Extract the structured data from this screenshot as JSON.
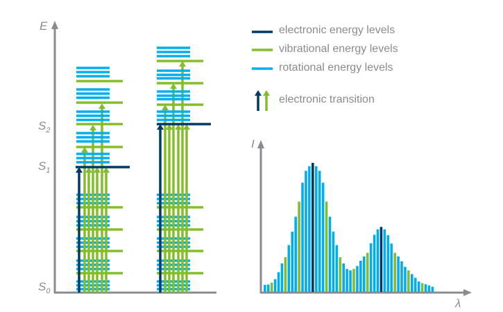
{
  "colors": {
    "electronic": "#003a63",
    "vibrational": "#84bd2a",
    "rotational": "#00aeef",
    "axis": "#8a8b90"
  },
  "energy_diagram": {
    "y_axis_label": "E",
    "levels": [
      {
        "symbol": "S",
        "sub": "2"
      },
      {
        "symbol": "S",
        "sub": "1"
      },
      {
        "symbol": "S",
        "sub": "0"
      }
    ]
  },
  "legend": [
    {
      "text": "electronic energy levels",
      "type": "electronic"
    },
    {
      "text": "vibrational energy levels",
      "type": "vibrational"
    },
    {
      "text": "rotational energy levels",
      "type": "rotational"
    },
    {
      "text": "electronic transition",
      "type": "transition"
    }
  ],
  "chart_data": {
    "type": "bar",
    "xlabel": "λ",
    "ylabel": "I",
    "intensity": [
      5.4,
      5.7,
      7.2,
      9.9,
      15.3,
      22.1,
      26.9,
      36.3,
      46.7,
      58.3,
      70,
      84.7,
      93.9,
      97.5,
      100,
      97.5,
      93.9,
      84.7,
      70,
      58.3,
      46.7,
      36.3,
      26.9,
      22.1,
      17.8,
      16.7,
      17.8,
      20.1,
      24.2,
      27.5,
      30.3,
      37.7,
      44.3,
      48.5,
      50.4,
      48.5,
      44,
      37.5,
      30.3,
      27.5,
      23.7,
      19.4,
      16.7,
      13.8,
      11,
      8.1,
      6.8,
      5.9,
      5,
      4
    ],
    "line_type": [
      "rotational",
      "rotational",
      "vibrational",
      "rotational",
      "rotational",
      "rotational",
      "vibrational",
      "rotational",
      "rotational",
      "rotational",
      "vibrational",
      "rotational",
      "rotational",
      "rotational",
      "electronic",
      "rotational",
      "rotational",
      "rotational",
      "vibrational",
      "rotational",
      "rotational",
      "rotational",
      "vibrational",
      "rotational",
      "rotational",
      "rotational",
      "vibrational",
      "rotational",
      "rotational",
      "rotational",
      "vibrational",
      "rotational",
      "rotational",
      "rotational",
      "electronic",
      "rotational",
      "rotational",
      "rotational",
      "vibrational",
      "rotational",
      "rotational",
      "rotational",
      "vibrational",
      "rotational",
      "rotational",
      "rotational",
      "vibrational",
      "rotational",
      "rotational",
      "rotational"
    ],
    "ylim": [
      0,
      100
    ],
    "grid": false
  }
}
